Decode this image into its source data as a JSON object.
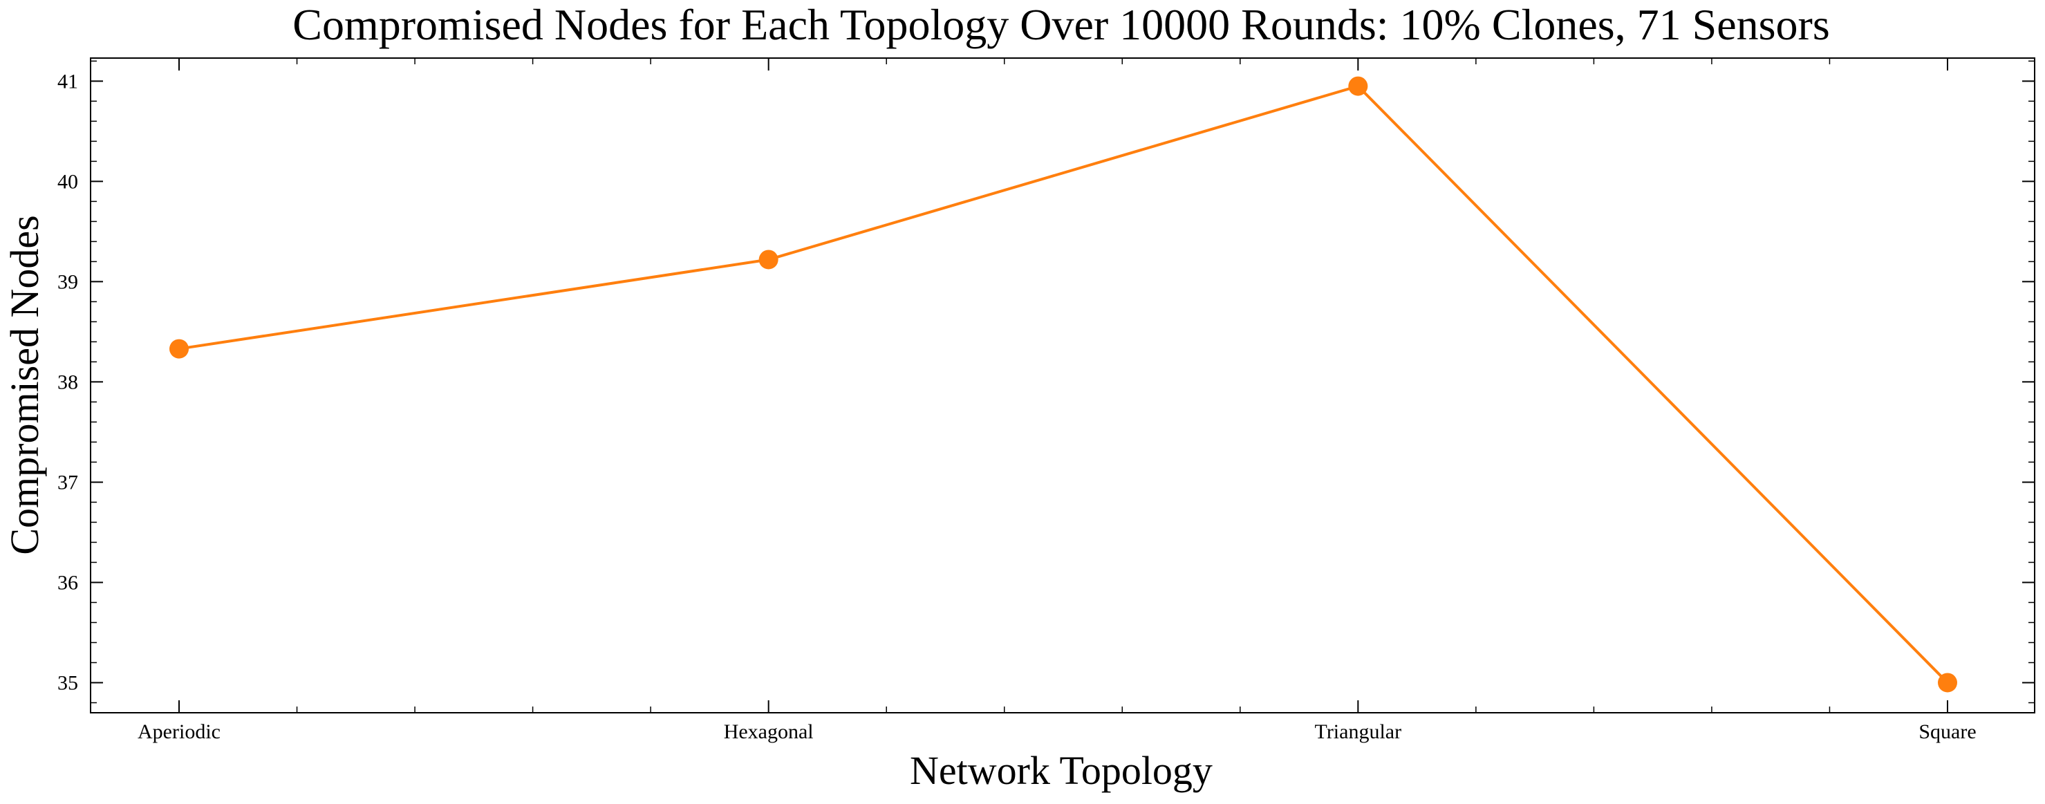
{
  "chart_data": {
    "type": "line",
    "title": "Compromised Nodes for Each Topology Over 10000 Rounds: 10% Clones, 71 Sensors",
    "xlabel": "Network Topology",
    "ylabel": "Compromised Nodes",
    "categories": [
      "Aperiodic",
      "Hexagonal",
      "Triangular",
      "Square"
    ],
    "series": [
      {
        "values": [
          38.33,
          39.22,
          40.95,
          35.0
        ]
      }
    ],
    "ylim": [
      34.7,
      41.23
    ],
    "yticks": [
      35,
      36,
      37,
      38,
      39,
      40,
      41
    ],
    "ytick_labels": [
      "35",
      "36",
      "37",
      "38",
      "39",
      "40",
      "41"
    ],
    "line_color": "#ff7f0e",
    "marker": "circle",
    "grid": false,
    "legend": "none"
  }
}
